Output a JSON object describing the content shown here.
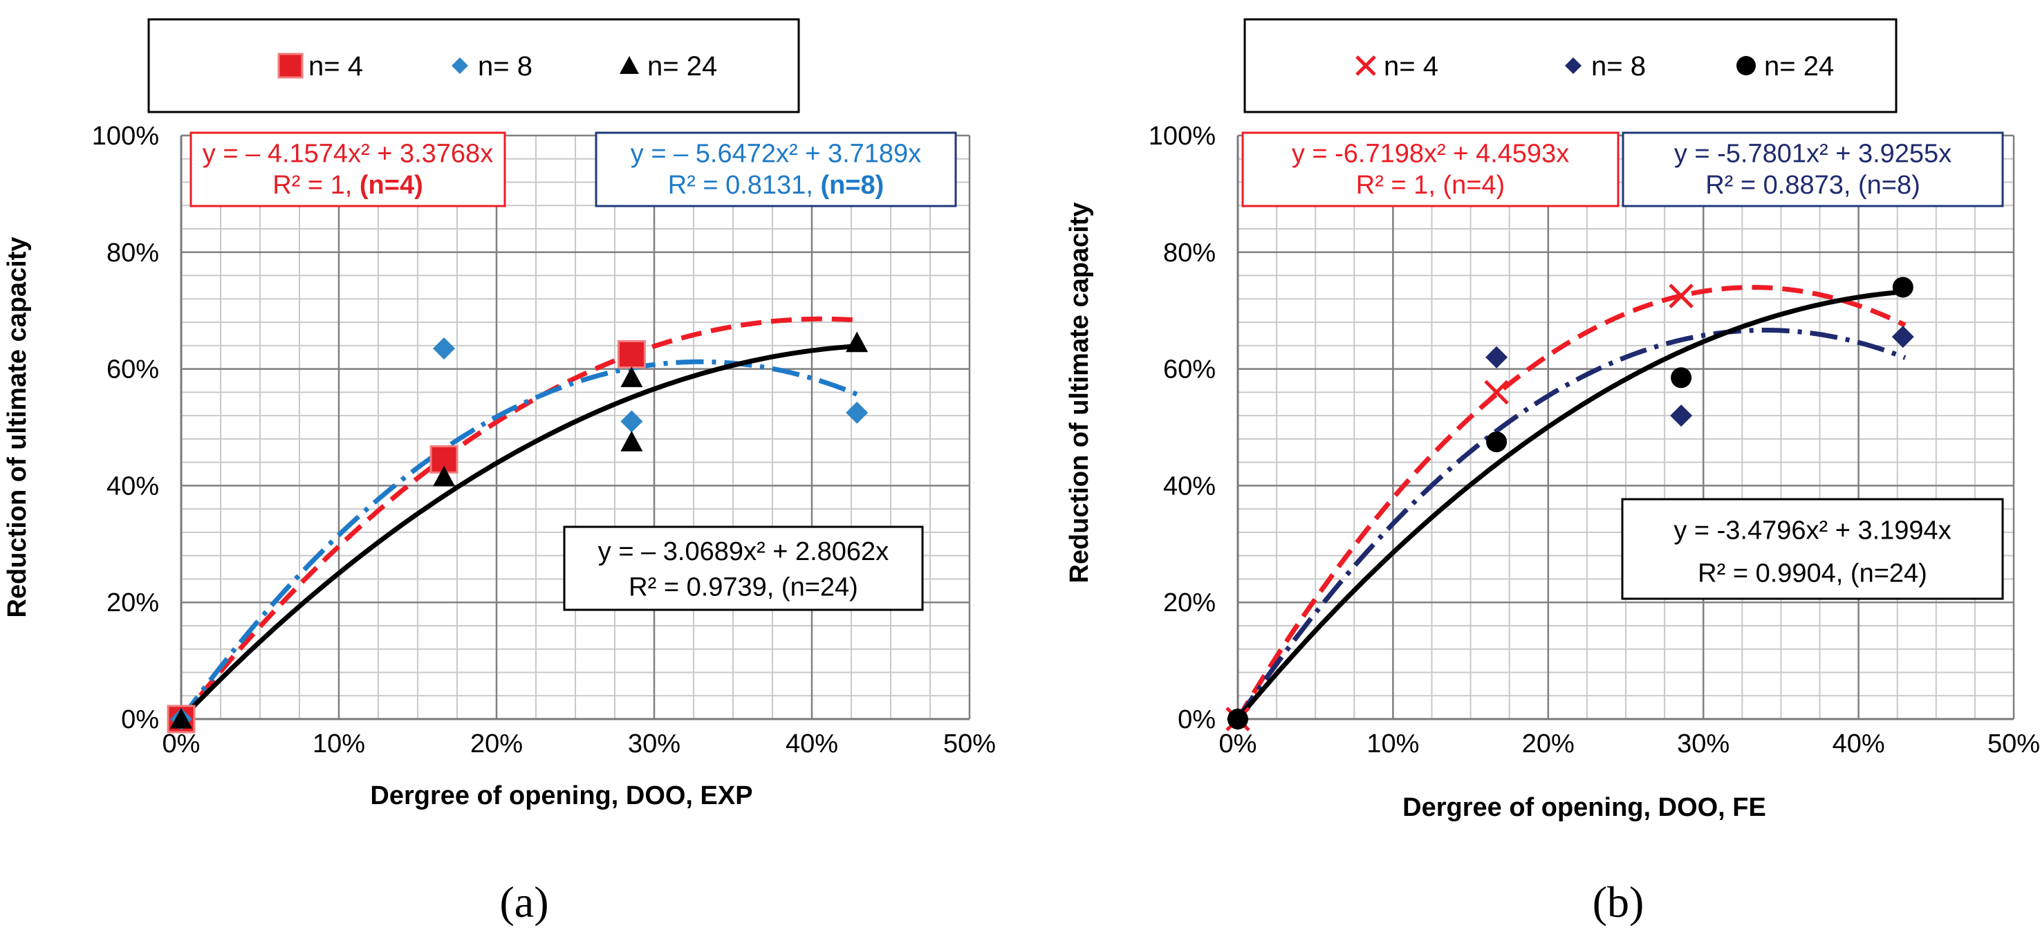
{
  "chart_data": [
    {
      "type": "scatter",
      "panel_label": "(a)",
      "title": "",
      "xlabel": "Dergree of opening, DOO, EXP",
      "ylabel": "Reduction of ultimate capacity",
      "xlim": [
        0,
        0.5
      ],
      "ylim": [
        0,
        1.0
      ],
      "x_ticks": [
        0,
        0.1,
        0.2,
        0.3,
        0.4,
        0.5
      ],
      "x_tick_labels": [
        "0%",
        "10%",
        "20%",
        "30%",
        "40%",
        "50%"
      ],
      "y_ticks": [
        0,
        0.2,
        0.4,
        0.6,
        0.8,
        1.0
      ],
      "y_tick_labels": [
        "0%",
        "20%",
        "40%",
        "60%",
        "80%",
        "100%"
      ],
      "grid": true,
      "legend_position": "top",
      "series": [
        {
          "name": "n= 4",
          "marker": "square",
          "color": "#e41e26",
          "x": [
            0,
            0.1667,
            0.2857
          ],
          "y": [
            0,
            0.445,
            0.625
          ],
          "trendline": {
            "a": -4.1574,
            "b": 3.3768,
            "x_end": 0.43,
            "style": "dashed",
            "color": "#ee1c25"
          }
        },
        {
          "name": "n= 8",
          "marker": "diamond",
          "color": "#2e86c8",
          "x": [
            0,
            0.1667,
            0.2857,
            0.4286
          ],
          "y": [
            0,
            0.635,
            0.51,
            0.525
          ],
          "trendline": {
            "a": -5.6472,
            "b": 3.7189,
            "x_end": 0.43,
            "style": "dashdot",
            "color": "#1e7ac8"
          }
        },
        {
          "name": "n= 24",
          "marker": "triangle",
          "color": "#000000",
          "x": [
            0,
            0.1667,
            0.2857,
            0.2857,
            0.4286
          ],
          "y": [
            0,
            0.415,
            0.585,
            0.475,
            0.645
          ],
          "trendline": {
            "a": -3.0689,
            "b": 2.8062,
            "x_end": 0.43,
            "style": "solid",
            "color": "#000000"
          }
        }
      ],
      "annotations": [
        {
          "series": "n= 4",
          "line1": "y = – 4.1574x² + 3.3768x",
          "line2_plain": "R² = 1, ",
          "line2_bold": "(n=4)",
          "color": "#e41e26",
          "border": "#ee1c25"
        },
        {
          "series": "n= 8",
          "line1": "y = – 5.6472x² + 3.7189x",
          "line2_plain": "R² = 0.8131, ",
          "line2_bold": "(n=8)",
          "color": "#1e7ac8",
          "border": "#1f3a7a"
        },
        {
          "series": "n= 24",
          "line1": "y = – 3.0689x² + 2.8062x",
          "line2_plain": "R² = 0.9739, (n=24)",
          "line2_bold": "",
          "color": "#000000",
          "border": "#000000"
        }
      ]
    },
    {
      "type": "scatter",
      "panel_label": "(b)",
      "title": "",
      "xlabel": "Dergree of opening, DOO, FE",
      "ylabel": "Reduction of ultimate capacity",
      "xlim": [
        0,
        0.5
      ],
      "ylim": [
        0,
        1.0
      ],
      "x_ticks": [
        0,
        0.1,
        0.2,
        0.3,
        0.4,
        0.5
      ],
      "x_tick_labels": [
        "0%",
        "10%",
        "20%",
        "30%",
        "40%",
        "50%"
      ],
      "y_ticks": [
        0,
        0.2,
        0.4,
        0.6,
        0.8,
        1.0
      ],
      "y_tick_labels": [
        "0%",
        "20%",
        "40%",
        "60%",
        "80%",
        "100%"
      ],
      "grid": true,
      "legend_position": "top",
      "series": [
        {
          "name": "n= 4",
          "marker": "x",
          "color": "#ee1c25",
          "x": [
            0,
            0.1667,
            0.2857
          ],
          "y": [
            0,
            0.56,
            0.725
          ],
          "trendline": {
            "a": -6.7198,
            "b": 4.4593,
            "x_end": 0.43,
            "style": "dashed",
            "color": "#ee1c25"
          }
        },
        {
          "name": "n= 8",
          "marker": "diamond",
          "color": "#1f2a6e",
          "x": [
            0,
            0.1667,
            0.2857,
            0.4286
          ],
          "y": [
            0,
            0.62,
            0.52,
            0.655
          ],
          "trendline": {
            "a": -5.7801,
            "b": 3.9255,
            "x_end": 0.43,
            "style": "dashdot",
            "color": "#1f2a6e"
          }
        },
        {
          "name": "n= 24",
          "marker": "circle",
          "color": "#000000",
          "x": [
            0,
            0.1667,
            0.2857,
            0.4286
          ],
          "y": [
            0,
            0.475,
            0.585,
            0.74
          ],
          "trendline": {
            "a": -3.4796,
            "b": 3.1994,
            "x_end": 0.43,
            "style": "solid",
            "color": "#000000"
          }
        }
      ],
      "annotations": [
        {
          "series": "n= 4",
          "line1": "y = -6.7198x² + 4.4593x",
          "line2_plain": "R² = 1, (n=4)",
          "line2_bold": "",
          "color": "#ee1c25",
          "border": "#ee1c25"
        },
        {
          "series": "n= 8",
          "line1": "y = -5.7801x² + 3.9255x",
          "line2_plain": "R² = 0.8873, (n=8)",
          "line2_bold": "",
          "color": "#1f2a6e",
          "border": "#1f3a7a"
        },
        {
          "series": "n= 24",
          "line1": "y = -3.4796x² + 3.1994x",
          "line2_plain": "R² = 0.9904, (n=24)",
          "line2_bold": "",
          "color": "#000000",
          "border": "#000000"
        }
      ]
    }
  ]
}
